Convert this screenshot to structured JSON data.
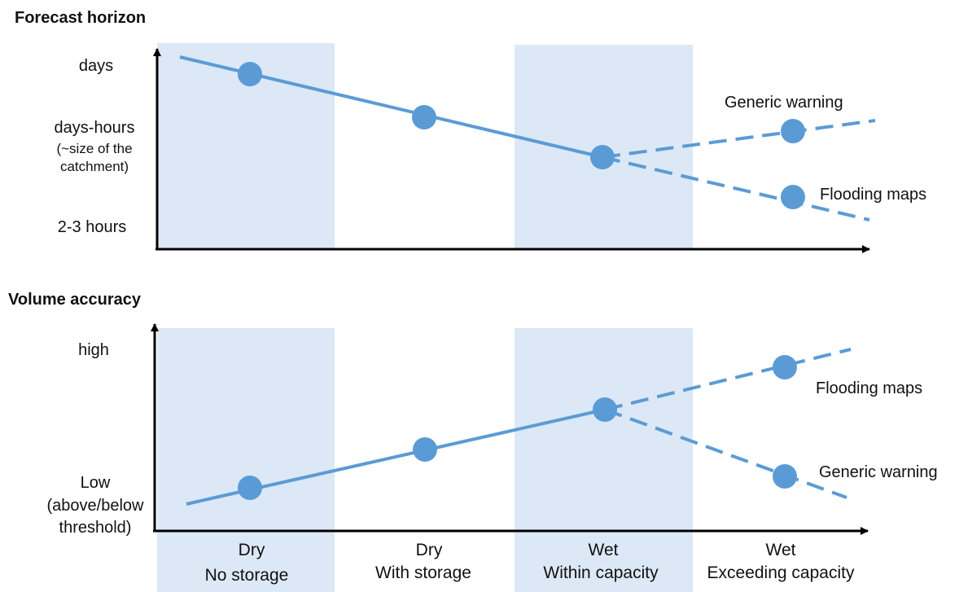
{
  "colors": {
    "band": "#dce8f6",
    "series": "#5b9bd5",
    "axis": "#000000"
  },
  "categories": [
    {
      "line1": "Dry",
      "line2": "No storage"
    },
    {
      "line1": "Dry",
      "line2": "With storage"
    },
    {
      "line1": "Wet",
      "line2": "Within capacity"
    },
    {
      "line1": "Wet",
      "line2": "Exceeding capacity"
    }
  ],
  "panels": [
    {
      "title": "Forecast horizon",
      "y_levels": [
        {
          "lines": [
            "days"
          ]
        },
        {
          "lines": [
            "days-hours",
            "(~size of the",
            "catchment)"
          ]
        },
        {
          "lines": [
            "2-3 hours"
          ]
        }
      ],
      "branches": [
        "Generic warning",
        "Flooding maps"
      ]
    },
    {
      "title": "Volume accuracy",
      "y_levels": [
        {
          "lines": [
            "high"
          ]
        },
        {
          "lines": [
            "Low",
            "(above/below",
            "threshold)"
          ]
        }
      ],
      "branches": [
        "Flooding maps",
        "Generic warning"
      ]
    }
  ]
}
